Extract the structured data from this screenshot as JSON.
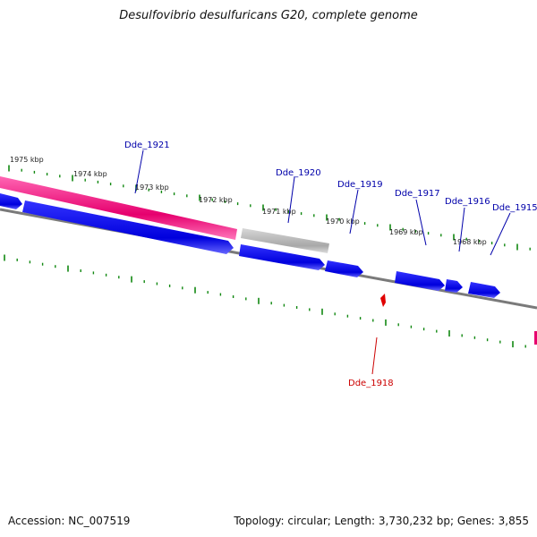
{
  "title": "Desulfovibrio desulfuricans G20, complete genome",
  "footer": {
    "accession": "Accession: NC_007519",
    "summary": "Topology: circular; Length: 3,730,232 bp; Genes: 3,855"
  },
  "colors": {
    "gene_forward": "#0000ee",
    "gene_highlight": "#e00000",
    "gene_label": "#0000aa",
    "highlight_label": "#cc0000",
    "rna_feature": "#ff3399",
    "pseudo_feature": "#b8b8b8",
    "backbone": "#7a7a7a",
    "ticks": "#118811"
  },
  "kbp_ticks": [
    "1975 kbp",
    "1974 kbp",
    "1973 kbp",
    "1972 kbp",
    "1971 kbp",
    "1970 kbp",
    "1969 kbp",
    "1968 kbp"
  ],
  "genes": [
    {
      "label": "Dde_1921"
    },
    {
      "label": "Dde_1920"
    },
    {
      "label": "Dde_1919"
    },
    {
      "label": "Dde_1918",
      "highlight": true
    },
    {
      "label": "Dde_1917"
    },
    {
      "label": "Dde_1916"
    },
    {
      "label": "Dde_1915"
    }
  ]
}
